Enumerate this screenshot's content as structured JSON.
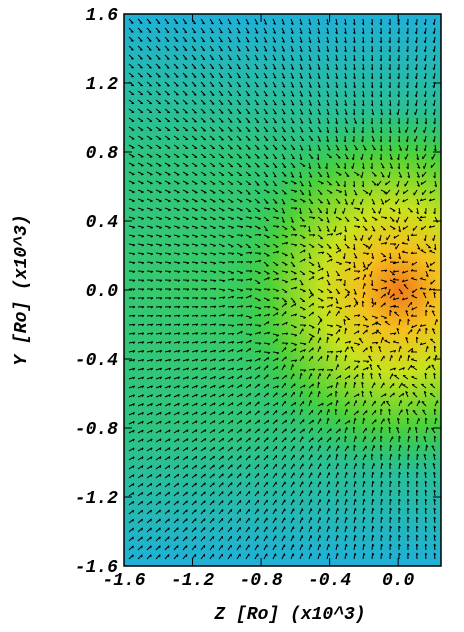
{
  "chart_data": {
    "type": "vector-field",
    "xlabel": "Z [Ro] (x10^3)",
    "ylabel": "Y [Ro] (x10^3)",
    "xlim": [
      -1.6,
      0.25
    ],
    "ylim": [
      -1.6,
      1.6
    ],
    "xticks": [
      -1.6,
      -1.2,
      -0.8,
      -0.4,
      {
        "value": 0,
        "label": "0.0"
      }
    ],
    "yticks": [
      1.6,
      1.2,
      0.8,
      0.4,
      {
        "value": 0,
        "label": "0.0"
      },
      -0.4,
      -0.8,
      -1.2,
      -1.6
    ]
  }
}
